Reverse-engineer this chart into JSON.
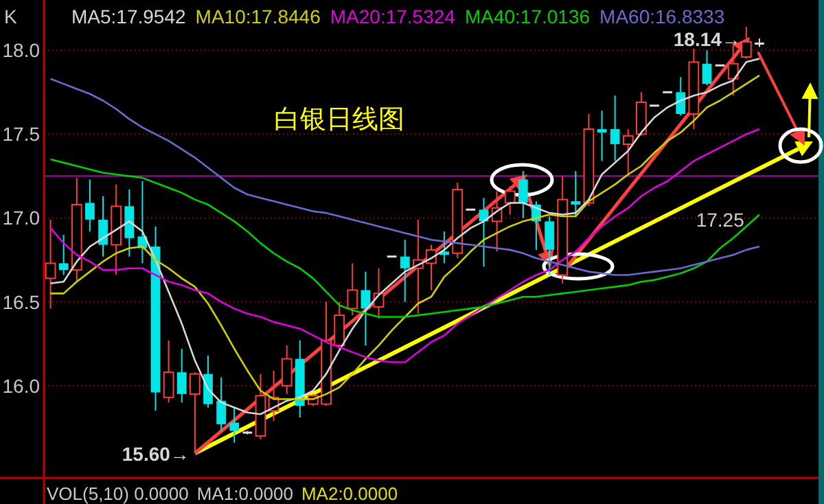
{
  "chart_data": {
    "type": "candlestick",
    "title": "白银日线图",
    "categories": [
      null,
      null,
      null,
      null,
      null,
      null,
      null,
      null,
      null,
      null,
      null,
      null,
      null,
      null,
      null,
      null,
      null,
      null,
      null,
      null,
      null,
      null,
      null,
      null,
      null,
      null,
      null,
      null,
      null,
      null,
      null,
      null,
      null,
      null,
      null,
      null,
      null,
      null,
      null,
      null,
      null,
      null,
      null,
      null,
      null,
      null,
      null,
      null,
      null,
      null,
      null,
      null,
      null,
      null,
      null
    ],
    "ohlc": [
      [
        16.64,
        16.99,
        16.46,
        16.73
      ],
      [
        16.73,
        16.9,
        16.66,
        16.69
      ],
      [
        16.69,
        17.24,
        16.62,
        17.08
      ],
      [
        17.09,
        17.23,
        16.92,
        16.99
      ],
      [
        16.99,
        17.13,
        16.77,
        16.84
      ],
      [
        16.84,
        17.2,
        16.66,
        17.07
      ],
      [
        17.07,
        17.17,
        16.77,
        16.88
      ],
      [
        16.89,
        17.22,
        16.73,
        16.82
      ],
      [
        16.83,
        16.95,
        15.85,
        15.96
      ],
      [
        15.93,
        16.27,
        15.9,
        16.08
      ],
      [
        16.08,
        16.22,
        15.9,
        15.95
      ],
      [
        15.95,
        16.08,
        15.6,
        16.07
      ],
      [
        16.07,
        16.18,
        15.87,
        15.89
      ],
      [
        15.91,
        16.05,
        15.73,
        15.77
      ],
      [
        15.78,
        15.87,
        15.66,
        15.73
      ],
      [
        15.72,
        15.73,
        15.71,
        15.72
      ],
      [
        15.7,
        16.07,
        15.68,
        15.94
      ],
      [
        15.85,
        16.09,
        15.79,
        15.93
      ],
      [
        16.0,
        16.24,
        15.95,
        16.16
      ],
      [
        16.16,
        16.27,
        15.81,
        15.88
      ],
      [
        15.89,
        15.95,
        15.88,
        15.94
      ],
      [
        15.89,
        16.5,
        15.88,
        16.27
      ],
      [
        16.24,
        16.5,
        16.22,
        16.42
      ],
      [
        16.46,
        16.73,
        16.42,
        16.57
      ],
      [
        16.57,
        16.68,
        16.24,
        16.46
      ],
      [
        16.47,
        16.7,
        16.4,
        16.55
      ],
      [
        16.77,
        16.77,
        16.77,
        16.77
      ],
      [
        16.77,
        16.87,
        16.5,
        16.7
      ],
      [
        16.7,
        16.99,
        16.43,
        16.75
      ],
      [
        16.73,
        16.84,
        16.57,
        16.81
      ],
      [
        16.8,
        16.92,
        16.73,
        16.78
      ],
      [
        16.79,
        17.21,
        16.76,
        17.17
      ],
      [
        17.05,
        17.05,
        17.05,
        17.05
      ],
      [
        17.05,
        17.12,
        16.71,
        16.98
      ],
      [
        16.98,
        17.16,
        16.8,
        17.06
      ],
      [
        17.09,
        17.19,
        17.02,
        17.16
      ],
      [
        17.23,
        17.28,
        17.0,
        17.09
      ],
      [
        17.08,
        17.1,
        16.81,
        16.98
      ],
      [
        16.98,
        17.01,
        16.66,
        16.81
      ],
      [
        16.66,
        17.25,
        16.61,
        17.11
      ],
      [
        17.1,
        17.28,
        17.01,
        17.08
      ],
      [
        17.09,
        17.62,
        17.07,
        17.53
      ],
      [
        17.53,
        17.64,
        17.34,
        17.51
      ],
      [
        17.53,
        17.73,
        17.34,
        17.44
      ],
      [
        17.44,
        17.53,
        17.25,
        17.49
      ],
      [
        17.5,
        17.75,
        17.49,
        17.69
      ],
      [
        17.67,
        17.67,
        17.67,
        17.67
      ],
      [
        17.75,
        17.75,
        17.75,
        17.75
      ],
      [
        17.75,
        17.84,
        17.61,
        17.62
      ],
      [
        17.62,
        18.01,
        17.53,
        17.93
      ],
      [
        17.92,
        18.0,
        17.79,
        17.8
      ],
      [
        17.91,
        17.91,
        17.91,
        17.91
      ],
      [
        17.83,
        18.04,
        17.73,
        17.92
      ],
      [
        17.96,
        18.14,
        17.95,
        18.05
      ],
      [
        18.04,
        18.07,
        18.02,
        18.04
      ]
    ],
    "colors": [
      "#ff3c3c",
      "#00e5e5",
      "#ff3c3c",
      "#00e5e5",
      "#00e5e5",
      "#ff3c3c",
      "#00e5e5",
      "#00e5e5",
      "#00e5e5",
      "#ff3c3c",
      "#00e5e5",
      "#ff3c3c",
      "#00e5e5",
      "#00e5e5",
      "#00e5e5",
      "#e0e0e0",
      "#ff3c3c",
      "#ff3c3c",
      "#ff3c3c",
      "#00e5e5",
      "#ff3c3c",
      "#ff3c3c",
      "#ff3c3c",
      "#ff3c3c",
      "#00e5e5",
      "#ff3c3c",
      "#e0e0e0",
      "#00e5e5",
      "#ff3c3c",
      "#ff3c3c",
      "#00e5e5",
      "#ff3c3c",
      "#e0e0e0",
      "#00e5e5",
      "#ff3c3c",
      "#ff3c3c",
      "#00e5e5",
      "#00e5e5",
      "#00e5e5",
      "#ff3c3c",
      "#00e5e5",
      "#ff3c3c",
      "#00e5e5",
      "#00e5e5",
      "#ff3c3c",
      "#ff3c3c",
      "#e0e0e0",
      "#e0e0e0",
      "#00e5e5",
      "#ff3c3c",
      "#00e5e5",
      "#e0e0e0",
      "#ff3c3c",
      "#ff3c3c",
      "#e0e0e0"
    ],
    "series": [
      {
        "name": "MA5:17.9542",
        "type": "line",
        "color": "#d8d8d8",
        "values": [
          16.61,
          16.62,
          16.74,
          16.83,
          16.88,
          16.93,
          16.98,
          16.92,
          16.75,
          16.56,
          16.37,
          16.15,
          15.98,
          15.9,
          15.87,
          15.84,
          15.83,
          15.87,
          15.91,
          15.93,
          15.97,
          16.07,
          16.21,
          16.34,
          16.45,
          16.54,
          16.61,
          16.68,
          16.72,
          16.76,
          16.81,
          16.88,
          16.94,
          16.98,
          17.04,
          17.09,
          17.09,
          17.06,
          17.03,
          17.02,
          17.03,
          17.11,
          17.26,
          17.33,
          17.4,
          17.51,
          17.6,
          17.66,
          17.7,
          17.73,
          17.75,
          17.79,
          17.82,
          17.93,
          17.95
        ]
      },
      {
        "name": "MA10:17.8446",
        "type": "line",
        "color": "#d0d000",
        "values": [
          16.55,
          16.55,
          16.62,
          16.68,
          16.74,
          16.79,
          16.82,
          16.83,
          16.75,
          16.7,
          16.64,
          16.59,
          16.49,
          16.36,
          16.22,
          16.09,
          15.97,
          15.92,
          15.92,
          15.92,
          15.92,
          15.95,
          15.99,
          16.07,
          16.16,
          16.24,
          16.33,
          16.41,
          16.49,
          16.53,
          16.65,
          16.72,
          16.8,
          16.87,
          16.91,
          16.95,
          16.98,
          17.0,
          17.02,
          17.01,
          17.01,
          17.1,
          17.15,
          17.2,
          17.26,
          17.31,
          17.39,
          17.46,
          17.51,
          17.58,
          17.66,
          17.7,
          17.75,
          17.8,
          17.85
        ]
      },
      {
        "name": "MA20:17.5324",
        "type": "line",
        "color": "#e000e0",
        "values": [
          16.94,
          16.85,
          16.78,
          16.74,
          16.69,
          16.69,
          16.7,
          16.7,
          16.66,
          16.62,
          16.6,
          16.57,
          16.55,
          16.5,
          16.46,
          16.43,
          16.41,
          16.38,
          16.36,
          16.34,
          16.3,
          16.26,
          16.23,
          16.2,
          16.17,
          16.15,
          16.14,
          16.14,
          16.2,
          16.26,
          16.3,
          16.37,
          16.42,
          16.47,
          16.52,
          16.57,
          16.62,
          16.66,
          16.69,
          16.75,
          16.8,
          16.88,
          16.95,
          17.01,
          17.06,
          17.13,
          17.18,
          17.22,
          17.28,
          17.34,
          17.38,
          17.42,
          17.46,
          17.5,
          17.53
        ]
      },
      {
        "name": "MA40:17.0136",
        "type": "line",
        "color": "#00d000",
        "values": [
          17.35,
          17.33,
          17.31,
          17.29,
          17.27,
          17.26,
          17.25,
          17.24,
          17.21,
          17.18,
          17.15,
          17.11,
          17.08,
          17.03,
          16.98,
          16.92,
          16.85,
          16.79,
          16.74,
          16.7,
          16.64,
          16.56,
          16.48,
          16.45,
          16.43,
          16.41,
          16.41,
          16.41,
          16.42,
          16.43,
          16.44,
          16.45,
          16.46,
          16.47,
          16.49,
          16.51,
          16.53,
          16.53,
          16.54,
          16.55,
          16.56,
          16.57,
          16.58,
          16.59,
          16.6,
          16.62,
          16.63,
          16.65,
          16.67,
          16.7,
          16.74,
          16.82,
          16.88,
          16.95,
          17.02
        ]
      },
      {
        "name": "MA60:16.8333",
        "type": "line",
        "color": "#6a6ad0",
        "values": [
          17.83,
          17.8,
          17.77,
          17.74,
          17.7,
          17.65,
          17.59,
          17.54,
          17.5,
          17.46,
          17.41,
          17.36,
          17.3,
          17.24,
          17.18,
          17.14,
          17.12,
          17.1,
          17.08,
          17.06,
          17.04,
          17.03,
          17.01,
          16.99,
          16.97,
          16.95,
          16.93,
          16.91,
          16.89,
          16.87,
          16.86,
          16.85,
          16.84,
          16.83,
          16.82,
          16.81,
          16.79,
          16.76,
          16.74,
          16.72,
          16.7,
          16.68,
          16.67,
          16.66,
          16.66,
          16.67,
          16.68,
          16.69,
          16.7,
          16.72,
          16.74,
          16.76,
          16.78,
          16.81,
          16.83
        ]
      }
    ],
    "ylim": [
      15.45,
      18.3
    ],
    "yticks": [
      {
        "value": 16,
        "label": "16.0"
      },
      {
        "value": 16.5,
        "label": "16.5"
      },
      {
        "value": 17,
        "label": "17.0"
      },
      {
        "value": 17.5,
        "label": "17.5"
      },
      {
        "value": 18,
        "label": "18.0"
      }
    ],
    "grid": "y",
    "legend": "top left",
    "ref_lines": [
      {
        "axis": "y",
        "value": 17.25,
        "label": "17.25",
        "color": "#a000a0"
      }
    ],
    "annotations": [
      "K",
      "15.60→",
      "18.14→",
      "VOL(5,10) 0.0000",
      "MA1:0.0000",
      "MA2:0.0000"
    ]
  }
}
